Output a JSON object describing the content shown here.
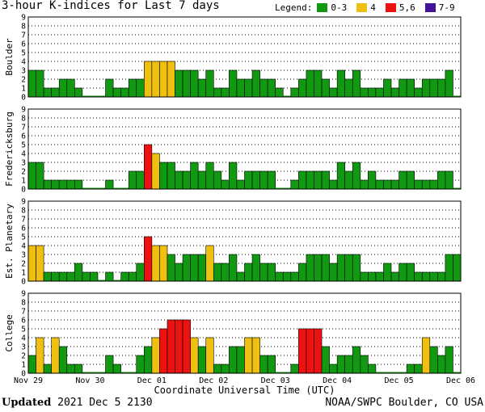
{
  "title": "3-hour K-indices for Last 7 days",
  "legend": {
    "label": "Legend:",
    "items": [
      {
        "label": "0-3",
        "color": "#119911"
      },
      {
        "label": "4",
        "color": "#f0c010"
      },
      {
        "label": "5,6",
        "color": "#ee1111"
      },
      {
        "label": "7-9",
        "color": "#441199"
      }
    ]
  },
  "footer": {
    "updated_label": "Updated",
    "updated_value": "2021 Dec  5 2130",
    "source": "NOAA/SWPC Boulder, CO USA"
  },
  "chart_data": {
    "type": "bar",
    "xlabel": "Coordinate Universal Time (UTC)",
    "x_ticks": [
      "Nov 29",
      "Nov 30",
      "Dec 01",
      "Dec 02",
      "Dec 03",
      "Dec 04",
      "Dec 05",
      "Dec 06"
    ],
    "ylim": [
      0,
      9
    ],
    "y_ticks": [
      0,
      1,
      2,
      3,
      4,
      5,
      6,
      7,
      8,
      9
    ],
    "bins_per_day": 8,
    "color_scale": {
      "0-3": "#119911",
      "4": "#f0c010",
      "5,6": "#ee1111",
      "7-9": "#441199"
    },
    "panels": [
      {
        "name": "Boulder",
        "values": [
          3,
          3,
          1,
          1,
          2,
          2,
          1,
          0,
          0,
          0,
          2,
          1,
          1,
          2,
          2,
          4,
          4,
          4,
          4,
          3,
          3,
          3,
          2,
          3,
          1,
          1,
          3,
          2,
          2,
          3,
          2,
          2,
          1,
          0,
          1,
          2,
          3,
          3,
          2,
          1,
          3,
          2,
          3,
          1,
          1,
          1,
          2,
          1,
          2,
          2,
          1,
          2,
          2,
          2,
          3,
          0
        ]
      },
      {
        "name": "Fredericksburg",
        "values": [
          3,
          3,
          1,
          1,
          1,
          1,
          1,
          0,
          0,
          0,
          1,
          0,
          0,
          2,
          2,
          5,
          4,
          3,
          3,
          2,
          2,
          3,
          2,
          3,
          2,
          1,
          3,
          1,
          2,
          2,
          2,
          2,
          0,
          0,
          1,
          2,
          2,
          2,
          2,
          1,
          3,
          2,
          3,
          1,
          2,
          1,
          1,
          1,
          2,
          2,
          1,
          1,
          1,
          2,
          2,
          0
        ]
      },
      {
        "name": "Est. Planetary",
        "values": [
          4,
          4,
          1,
          1,
          1,
          1,
          2,
          1,
          1,
          0,
          1,
          0,
          1,
          1,
          2,
          5,
          4,
          4,
          3,
          2,
          3,
          3,
          3,
          4,
          2,
          2,
          3,
          1,
          2,
          3,
          2,
          2,
          1,
          1,
          1,
          2,
          3,
          3,
          3,
          2,
          3,
          3,
          3,
          1,
          1,
          1,
          2,
          1,
          2,
          2,
          1,
          1,
          1,
          1,
          3,
          3
        ]
      },
      {
        "name": "College",
        "values": [
          2,
          4,
          1,
          4,
          3,
          1,
          1,
          0,
          0,
          0,
          2,
          1,
          0,
          0,
          2,
          3,
          4,
          5,
          6,
          6,
          6,
          4,
          3,
          4,
          1,
          1,
          3,
          3,
          4,
          4,
          2,
          2,
          0,
          0,
          1,
          5,
          5,
          5,
          3,
          1,
          2,
          2,
          3,
          2,
          1,
          0,
          0,
          0,
          0,
          1,
          1,
          4,
          3,
          2,
          3,
          0
        ]
      }
    ]
  }
}
